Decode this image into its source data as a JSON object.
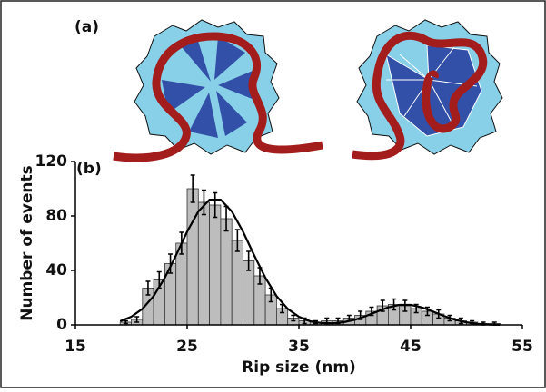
{
  "panel_labels": [
    "(a)",
    "(b)"
  ],
  "chart_data": {
    "type": "histogram",
    "xlabel": "Rip size (nm)",
    "ylabel": "Number of events",
    "bins": [
      19,
      20,
      21,
      22,
      23,
      24,
      25,
      26,
      27,
      28,
      29,
      30,
      31,
      32,
      33,
      34,
      35,
      36,
      37,
      38,
      39,
      40,
      41,
      42,
      43,
      44,
      45,
      46,
      47,
      48,
      49,
      50,
      51,
      52,
      53
    ],
    "counts": [
      2,
      4,
      27,
      33,
      45,
      60,
      100,
      90,
      88,
      78,
      62,
      47,
      36,
      22,
      12,
      5,
      3,
      2,
      3,
      3,
      5,
      7,
      10,
      14,
      15,
      14,
      12,
      10,
      8,
      5,
      3,
      2,
      1,
      1
    ],
    "errors": [
      1,
      2,
      5,
      6,
      7,
      8,
      10,
      9,
      9,
      9,
      8,
      7,
      6,
      5,
      3,
      2,
      2,
      1,
      2,
      2,
      2,
      3,
      3,
      4,
      4,
      4,
      3,
      3,
      3,
      2,
      2,
      1,
      1,
      1
    ],
    "color": "#bdbdbd",
    "fit": {
      "x": [
        19,
        20,
        21,
        22,
        23,
        24,
        25,
        26,
        27,
        28,
        29,
        30,
        31,
        32,
        33,
        34,
        35,
        36,
        37,
        38,
        39,
        40,
        41,
        42,
        43,
        44,
        45,
        46,
        47,
        48,
        49,
        50,
        51,
        52,
        53
      ],
      "values": [
        2.7,
        6.0,
        11.8,
        21.2,
        34.6,
        51.1,
        68.5,
        83.3,
        91.9,
        91.9,
        83.3,
        68.5,
        51.1,
        34.6,
        21.2,
        11.8,
        6.0,
        2.7,
        1.4,
        1.2,
        2.0,
        3.7,
        6.5,
        9.8,
        12.9,
        14.7,
        14.7,
        12.9,
        9.8,
        6.5,
        3.7,
        1.9,
        0.8,
        0.3,
        0.1
      ],
      "color": "#000000"
    },
    "xlim": [
      15,
      55
    ],
    "ylim": [
      0,
      120
    ],
    "xticks": [
      15,
      25,
      35,
      45,
      55
    ],
    "yticks": [
      0,
      40,
      80,
      120
    ]
  }
}
